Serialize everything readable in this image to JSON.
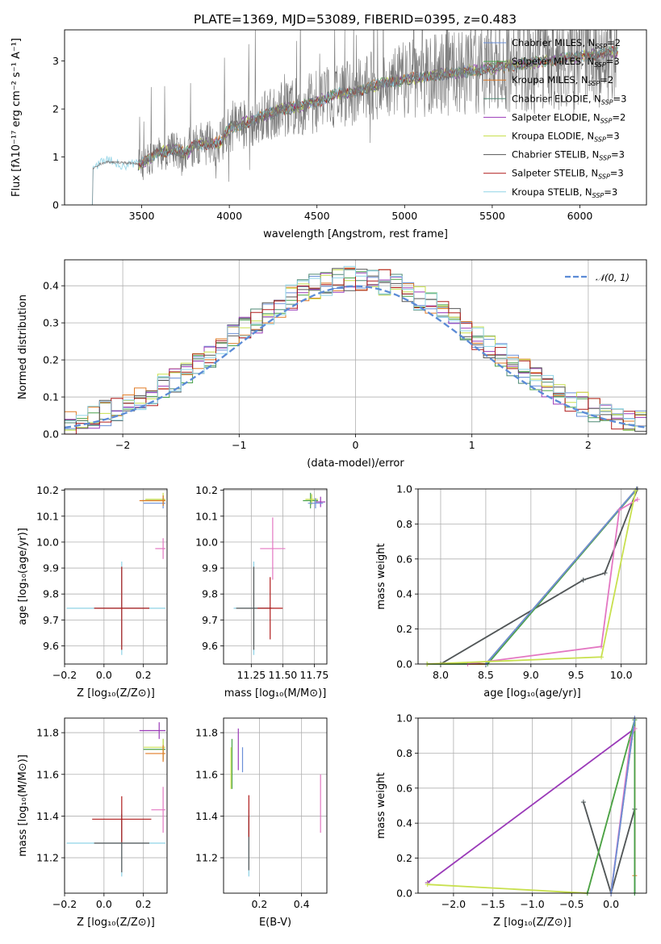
{
  "figure_title": "PLATE=1369, MJD=53089, FIBERID=0395, z=0.483",
  "chart_data": [
    {
      "id": "spectrum",
      "type": "line",
      "xlabel": "wavelength [Angstrom, rest frame]",
      "ylabel": "Flux [fλ10⁻¹⁷ erg cm⁻² s⁻¹ A⁻¹]",
      "xlim": [
        3060,
        6380
      ],
      "ylim": [
        0,
        3.65
      ],
      "xticks": [
        "3500",
        "4000",
        "4500",
        "5000",
        "5500",
        "6000"
      ],
      "yticks": [
        "0",
        "1",
        "2",
        "3"
      ],
      "grid": false,
      "legend_position": "top-right",
      "data_range": [
        3200,
        6220
      ],
      "noise_start": 3480,
      "series": [
        {
          "name": "Chabrier MILES, N",
          "sub": "SSP",
          "tail": "=2",
          "color": "#6a8fd8"
        },
        {
          "name": "Salpeter MILES, N",
          "sub": "SSP",
          "tail": "=3",
          "color": "#49a14a"
        },
        {
          "name": "Kroupa MILES, N",
          "sub": "SSP",
          "tail": "=2",
          "color": "#e07b26"
        },
        {
          "name": "Chabrier ELODIE, N",
          "sub": "SSP",
          "tail": "=3",
          "color": "#4e8a74"
        },
        {
          "name": "Salpeter ELODIE, N",
          "sub": "SSP",
          "tail": "=2",
          "color": "#9a3ab8"
        },
        {
          "name": "Kroupa ELODIE, N",
          "sub": "SSP",
          "tail": "=3",
          "color": "#c8e04e"
        },
        {
          "name": "Chabrier STELIB, N",
          "sub": "SSP",
          "tail": "=3",
          "color": "#555555"
        },
        {
          "name": "Salpeter STELIB, N",
          "sub": "SSP",
          "tail": "=3",
          "color": "#b01c1c"
        },
        {
          "name": "Kroupa STELIB, N",
          "sub": "SSP",
          "tail": "=3",
          "color": "#8fd3e6"
        }
      ],
      "model_continuum": {
        "x": [
          3200,
          3260,
          3300,
          3500,
          3600,
          3700,
          3750,
          3800,
          3950,
          4000,
          4100,
          4200,
          4300,
          4400,
          4500,
          4600,
          4700,
          4800,
          4900,
          5000,
          5100,
          5200,
          5300,
          5400,
          5500,
          5600,
          5700,
          5800,
          5900,
          6000,
          6100,
          6220
        ],
        "y": [
          0.7,
          0.85,
          0.9,
          0.85,
          1.1,
          1.15,
          1.05,
          1.25,
          1.3,
          1.6,
          1.72,
          1.85,
          2.0,
          2.05,
          2.15,
          2.3,
          2.35,
          2.45,
          2.55,
          2.62,
          2.65,
          2.72,
          2.75,
          2.8,
          2.85,
          2.9,
          2.95,
          3.0,
          3.05,
          3.1,
          3.15,
          3.2
        ]
      }
    },
    {
      "id": "residuals",
      "type": "bar",
      "xlabel": "(data-model)/error",
      "ylabel": "Normed distribution",
      "xlim": [
        -2.5,
        2.5
      ],
      "ylim": [
        0,
        0.47
      ],
      "xticks": [
        "−2",
        "−1",
        "0",
        "1",
        "2"
      ],
      "yticks": [
        "0.0",
        "0.1",
        "0.2",
        "0.3",
        "0.4"
      ],
      "grid": true,
      "legend_position": "top-right",
      "legend_label": "𝒩(0, 1)",
      "reference_curve": "gaussian(0,1)",
      "reference_color": "#5b8bd6",
      "bin_width": 0.1
    },
    {
      "id": "age_vs_Z",
      "type": "scatter",
      "xlabel": "Z [log₁₀(Z/Z⊙)]",
      "ylabel": "age  [log₁₀(age/yr)]",
      "xlim": [
        -0.2,
        0.32
      ],
      "ylim": [
        9.53,
        10.205
      ],
      "xticks": [
        {
          "v": -0.2,
          "t": "−0.2"
        },
        {
          "v": 0.0,
          "t": "0.0"
        },
        {
          "v": 0.2,
          "t": "0.2"
        }
      ],
      "yticks": [
        {
          "v": 9.6,
          "t": "9.6"
        },
        {
          "v": 9.7,
          "t": "9.7"
        },
        {
          "v": 9.8,
          "t": "9.8"
        },
        {
          "v": 9.9,
          "t": "9.9"
        },
        {
          "v": 10.0,
          "t": "10.0"
        },
        {
          "v": 10.1,
          "t": "10.1"
        },
        {
          "v": 10.2,
          "t": "10.2"
        }
      ],
      "grid": true,
      "points": [
        {
          "x": 0.09,
          "y": 9.745,
          "xerr": 0.14,
          "yerr": 0.16,
          "color": "#555555"
        },
        {
          "x": 0.09,
          "y": 9.745,
          "xerr": 0.28,
          "yerr": 0.18,
          "color": "#8fd3e6"
        },
        {
          "x": 0.09,
          "y": 9.745,
          "xerr": 0.14,
          "yerr": 0.16,
          "color": "#b01c1c"
        },
        {
          "x": 0.3,
          "y": 9.975,
          "xerr": 0.04,
          "yerr": 0.04,
          "color": "#e377c2"
        },
        {
          "x": 0.3,
          "y": 10.16,
          "xerr": 0.11,
          "yerr": 0.02,
          "color": "#49a14a"
        },
        {
          "x": 0.3,
          "y": 10.165,
          "xerr": 0.09,
          "yerr": 0.025,
          "color": "#c8e04e"
        },
        {
          "x": 0.3,
          "y": 10.15,
          "xerr": 0.1,
          "yerr": 0.02,
          "color": "#6a8fd8"
        },
        {
          "x": 0.3,
          "y": 10.16,
          "xerr": 0.12,
          "yerr": 0.02,
          "color": "#e07b26"
        }
      ]
    },
    {
      "id": "age_vs_mass",
      "type": "scatter",
      "xlabel": "mass [log₁₀(M/M⊙)]",
      "ylabel": "",
      "xlim": [
        11.03,
        11.85
      ],
      "ylim": [
        9.53,
        10.205
      ],
      "xticks": [
        {
          "v": 11.25,
          "t": "11.25"
        },
        {
          "v": 11.5,
          "t": "11.50"
        },
        {
          "v": 11.75,
          "t": "11.75"
        }
      ],
      "yticks": [
        {
          "v": 9.6,
          "t": "9.6"
        },
        {
          "v": 9.7,
          "t": "9.7"
        },
        {
          "v": 9.8,
          "t": "9.8"
        },
        {
          "v": 9.9,
          "t": "9.9"
        },
        {
          "v": 10.0,
          "t": "10.0"
        },
        {
          "v": 10.1,
          "t": "10.1"
        },
        {
          "v": 10.2,
          "t": "10.2"
        }
      ],
      "grid": true,
      "points": [
        {
          "x": 11.27,
          "y": 9.745,
          "xerr": 0.16,
          "yerr": 0.18,
          "color": "#8fd3e6"
        },
        {
          "x": 11.27,
          "y": 9.745,
          "xerr": 0.14,
          "yerr": 0.16,
          "color": "#555555"
        },
        {
          "x": 11.4,
          "y": 9.745,
          "xerr": 0.1,
          "yerr": 0.12,
          "color": "#b01c1c"
        },
        {
          "x": 11.42,
          "y": 9.975,
          "xerr": 0.1,
          "yerr": 0.12,
          "color": "#e377c2"
        },
        {
          "x": 11.72,
          "y": 10.16,
          "xerr": 0.06,
          "yerr": 0.03,
          "color": "#49a14a"
        },
        {
          "x": 11.73,
          "y": 10.165,
          "xerr": 0.05,
          "yerr": 0.02,
          "color": "#c8e04e"
        },
        {
          "x": 11.8,
          "y": 10.155,
          "xerr": 0.04,
          "yerr": 0.02,
          "color": "#9a3ab8"
        },
        {
          "x": 11.76,
          "y": 10.15,
          "xerr": 0.06,
          "yerr": 0.02,
          "color": "#6a8fd8"
        }
      ]
    },
    {
      "id": "weight_vs_age",
      "type": "line",
      "xlabel": "age  [log₁₀(age/yr)]",
      "ylabel": "mass weight",
      "xlim": [
        7.75,
        10.28
      ],
      "ylim": [
        0,
        1.0
      ],
      "xticks": [
        {
          "v": 8.0,
          "t": "8.0"
        },
        {
          "v": 8.5,
          "t": "8.5"
        },
        {
          "v": 9.0,
          "t": "9.0"
        },
        {
          "v": 9.5,
          "t": "9.5"
        },
        {
          "v": 10.0,
          "t": "10.0"
        }
      ],
      "yticks": [
        {
          "v": 0,
          "t": "0.0"
        },
        {
          "v": 0.2,
          "t": "0.2"
        },
        {
          "v": 0.4,
          "t": "0.4"
        },
        {
          "v": 0.6,
          "t": "0.6"
        },
        {
          "v": 0.8,
          "t": "0.8"
        },
        {
          "v": 1.0,
          "t": "1.0"
        }
      ],
      "grid": true,
      "series": [
        {
          "color": "#8fd3e6",
          "x": [
            8.0,
            9.58,
            9.82,
            10.18
          ],
          "y": [
            0.0,
            0.48,
            0.52,
            1.0
          ]
        },
        {
          "color": "#555555",
          "x": [
            8.0,
            9.58,
            9.82,
            10.18
          ],
          "y": [
            0.0,
            0.48,
            0.52,
            1.0
          ]
        },
        {
          "color": "#49a14a",
          "x": [
            7.85,
            8.52,
            10.16
          ],
          "y": [
            0.0,
            0.0,
            0.99
          ]
        },
        {
          "color": "#e07b26",
          "x": [
            8.3,
            8.5,
            10.17
          ],
          "y": [
            0.0,
            0.0,
            1.0
          ]
        },
        {
          "color": "#6a8fd8",
          "x": [
            8.5,
            10.17
          ],
          "y": [
            0.0,
            1.0
          ]
        },
        {
          "color": "#e377c2",
          "x": [
            8.3,
            9.78,
            9.98,
            10.18
          ],
          "y": [
            0.0,
            0.1,
            0.88,
            0.94
          ]
        },
        {
          "color": "#c8e04e",
          "x": [
            7.85,
            9.78,
            10.16
          ],
          "y": [
            0.0,
            0.04,
            0.99
          ]
        }
      ]
    },
    {
      "id": "mass_vs_Z",
      "type": "scatter",
      "xlabel": "Z [log₁₀(Z/Z⊙)]",
      "ylabel": "mass [log₁₀(M/M⊙)]",
      "xlim": [
        -0.2,
        0.32
      ],
      "ylim": [
        11.03,
        11.87
      ],
      "xticks": [
        {
          "v": -0.2,
          "t": "−0.2"
        },
        {
          "v": 0.0,
          "t": "0.0"
        },
        {
          "v": 0.2,
          "t": "0.2"
        }
      ],
      "yticks": [
        {
          "v": 11.2,
          "t": "11.2"
        },
        {
          "v": 11.4,
          "t": "11.4"
        },
        {
          "v": 11.6,
          "t": "11.6"
        },
        {
          "v": 11.8,
          "t": "11.8"
        }
      ],
      "grid": true,
      "points": [
        {
          "x": 0.09,
          "y": 11.27,
          "xerr": 0.28,
          "yerr": 0.16,
          "color": "#8fd3e6"
        },
        {
          "x": 0.09,
          "y": 11.27,
          "xerr": 0.14,
          "yerr": 0.14,
          "color": "#555555"
        },
        {
          "x": 0.09,
          "y": 11.385,
          "xerr": 0.15,
          "yerr": 0.11,
          "color": "#b01c1c"
        },
        {
          "x": 0.3,
          "y": 11.43,
          "xerr": 0.06,
          "yerr": 0.11,
          "color": "#e377c2"
        },
        {
          "x": 0.3,
          "y": 11.72,
          "xerr": 0.1,
          "yerr": 0.05,
          "color": "#49a14a"
        },
        {
          "x": 0.3,
          "y": 11.73,
          "xerr": 0.1,
          "yerr": 0.04,
          "color": "#c8e04e"
        },
        {
          "x": 0.28,
          "y": 11.81,
          "xerr": 0.1,
          "yerr": 0.04,
          "color": "#9a3ab8"
        },
        {
          "x": 0.3,
          "y": 11.7,
          "xerr": 0.09,
          "yerr": 0.04,
          "color": "#e07b26"
        }
      ]
    },
    {
      "id": "mass_vs_ebv",
      "type": "scatter",
      "xlabel": "E(B-V)",
      "ylabel": "",
      "xlim": [
        0.03,
        0.52
      ],
      "ylim": [
        11.03,
        11.87
      ],
      "xticks": [
        {
          "v": 0.2,
          "t": "0.2"
        },
        {
          "v": 0.4,
          "t": "0.4"
        }
      ],
      "yticks": [
        {
          "v": 11.2,
          "t": "11.2"
        },
        {
          "v": 11.4,
          "t": "11.4"
        },
        {
          "v": 11.6,
          "t": "11.6"
        },
        {
          "v": 11.8,
          "t": "11.8"
        }
      ],
      "grid": true,
      "points": [
        {
          "x": 0.15,
          "y": 11.27,
          "xerr": 0,
          "yerr": 0.16,
          "color": "#8fd3e6"
        },
        {
          "x": 0.15,
          "y": 11.27,
          "xerr": 0,
          "yerr": 0.13,
          "color": "#555555"
        },
        {
          "x": 0.15,
          "y": 11.4,
          "xerr": 0,
          "yerr": 0.1,
          "color": "#b01c1c"
        },
        {
          "x": 0.49,
          "y": 11.46,
          "xerr": 0,
          "yerr": 0.14,
          "color": "#e377c2"
        },
        {
          "x": 0.07,
          "y": 11.65,
          "xerr": 0,
          "yerr": 0.12,
          "color": "#49a14a"
        },
        {
          "x": 0.065,
          "y": 11.63,
          "xerr": 0,
          "yerr": 0.1,
          "color": "#c8e04e"
        },
        {
          "x": 0.1,
          "y": 11.72,
          "xerr": 0,
          "yerr": 0.1,
          "color": "#9a3ab8"
        },
        {
          "x": 0.12,
          "y": 11.67,
          "xerr": 0,
          "yerr": 0.06,
          "color": "#6a8fd8"
        }
      ]
    },
    {
      "id": "weight_vs_Z",
      "type": "line",
      "xlabel": "Z [log₁₀(Z/Z⊙)]",
      "ylabel": "mass weight",
      "xlim": [
        -2.45,
        0.45
      ],
      "ylim": [
        0,
        1.0
      ],
      "xticks": [
        {
          "v": -2.0,
          "t": "−2.0"
        },
        {
          "v": -1.5,
          "t": "−1.5"
        },
        {
          "v": -1.0,
          "t": "−1.0"
        },
        {
          "v": -0.5,
          "t": "−0.5"
        },
        {
          "v": 0.0,
          "t": "0.0"
        }
      ],
      "yticks": [
        {
          "v": 0,
          "t": "0.0"
        },
        {
          "v": 0.2,
          "t": "0.2"
        },
        {
          "v": 0.4,
          "t": "0.4"
        },
        {
          "v": 0.6,
          "t": "0.6"
        },
        {
          "v": 0.8,
          "t": "0.8"
        },
        {
          "v": 1.0,
          "t": "1.0"
        }
      ],
      "grid": true,
      "series": [
        {
          "color": "#8fd3e6",
          "x": [
            -0.35,
            0.0,
            0.3,
            0.3
          ],
          "y": [
            0.52,
            0.0,
            0.48,
            0.0
          ]
        },
        {
          "color": "#555555",
          "x": [
            -0.35,
            0.0,
            0.3,
            0.3
          ],
          "y": [
            0.52,
            0.0,
            0.48,
            0.0
          ]
        },
        {
          "color": "#9a3ab8",
          "x": [
            -2.33,
            0.3
          ],
          "y": [
            0.06,
            0.94
          ]
        },
        {
          "color": "#c8e04e",
          "x": [
            -2.33,
            -0.3,
            0.3
          ],
          "y": [
            0.05,
            0.0,
            0.99
          ]
        },
        {
          "color": "#e07b26",
          "x": [
            0.0,
            0.3,
            0.3
          ],
          "y": [
            0.0,
            1.0,
            0.1
          ]
        },
        {
          "color": "#49a14a",
          "x": [
            -0.3,
            0.3,
            0.3
          ],
          "y": [
            0.0,
            0.99,
            0.0
          ]
        },
        {
          "color": "#e377c2",
          "x": [
            0.0,
            0.25,
            0.3
          ],
          "y": [
            0.0,
            0.88,
            0.94
          ]
        },
        {
          "color": "#6a8fd8",
          "x": [
            0.0,
            0.3
          ],
          "y": [
            0.0,
            1.0
          ]
        }
      ]
    }
  ]
}
